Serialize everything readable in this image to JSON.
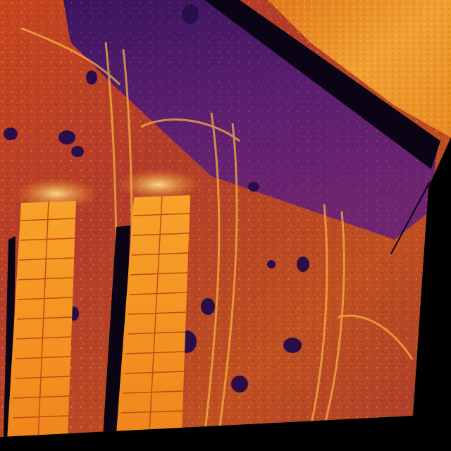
{
  "image": {
    "kind": "thermal aerial photograph",
    "palette": "inferno",
    "colors": {
      "background": "#000000",
      "cold": "#1a0a3a",
      "cool": "#4a1a6e",
      "mid": "#8a2a6a",
      "warm": "#c8461e",
      "hot": "#f08a1a",
      "hottest": "#fde08a",
      "panel": "#f5901c",
      "panel_grid": "#c24a10",
      "shadow": "#0a0414"
    },
    "objects": [
      "solar-panel-row",
      "solar-panel-row",
      "panel-shadow",
      "panel-shadow",
      "dirt-road",
      "utility-pole-shadow",
      "tire-tracks",
      "vegetation-patches"
    ]
  }
}
